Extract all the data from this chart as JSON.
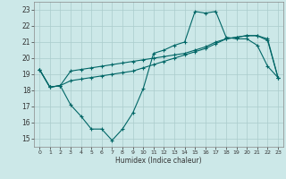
{
  "xlabel": "Humidex (Indice chaleur)",
  "bg_color": "#cce8e8",
  "line_color": "#006666",
  "grid_color": "#aacccc",
  "xlim": [
    -0.5,
    23.5
  ],
  "ylim": [
    14.5,
    23.5
  ],
  "xticks": [
    0,
    1,
    2,
    3,
    4,
    5,
    6,
    7,
    8,
    9,
    10,
    11,
    12,
    13,
    14,
    15,
    16,
    17,
    18,
    19,
    20,
    21,
    22,
    23
  ],
  "yticks": [
    15,
    16,
    17,
    18,
    19,
    20,
    21,
    22,
    23
  ],
  "line1_x": [
    0,
    1,
    2,
    3,
    4,
    5,
    6,
    7,
    8,
    9,
    10,
    11,
    12,
    13,
    14,
    15,
    16,
    17,
    18,
    19,
    20,
    21,
    22,
    23
  ],
  "line1_y": [
    19.3,
    18.2,
    18.3,
    17.1,
    16.4,
    15.6,
    15.6,
    14.9,
    15.6,
    16.6,
    18.1,
    20.3,
    20.5,
    20.8,
    21.0,
    22.9,
    22.8,
    22.9,
    21.3,
    21.2,
    21.2,
    20.8,
    19.5,
    18.8
  ],
  "line2_x": [
    0,
    1,
    2,
    3,
    4,
    5,
    6,
    7,
    8,
    9,
    10,
    11,
    12,
    13,
    14,
    15,
    16,
    17,
    18,
    19,
    20,
    21,
    22,
    23
  ],
  "line2_y": [
    19.3,
    18.2,
    18.3,
    18.6,
    18.7,
    18.8,
    18.9,
    19.0,
    19.1,
    19.2,
    19.4,
    19.6,
    19.8,
    20.0,
    20.2,
    20.4,
    20.6,
    20.9,
    21.2,
    21.3,
    21.4,
    21.4,
    21.1,
    18.8
  ],
  "line3_x": [
    0,
    1,
    2,
    3,
    4,
    5,
    6,
    7,
    8,
    9,
    10,
    11,
    12,
    13,
    14,
    15,
    16,
    17,
    18,
    19,
    20,
    21,
    22,
    23
  ],
  "line3_y": [
    19.3,
    18.2,
    18.3,
    19.2,
    19.3,
    19.4,
    19.5,
    19.6,
    19.7,
    19.8,
    19.9,
    20.0,
    20.1,
    20.2,
    20.3,
    20.5,
    20.7,
    21.0,
    21.2,
    21.3,
    21.4,
    21.4,
    21.2,
    18.8
  ]
}
